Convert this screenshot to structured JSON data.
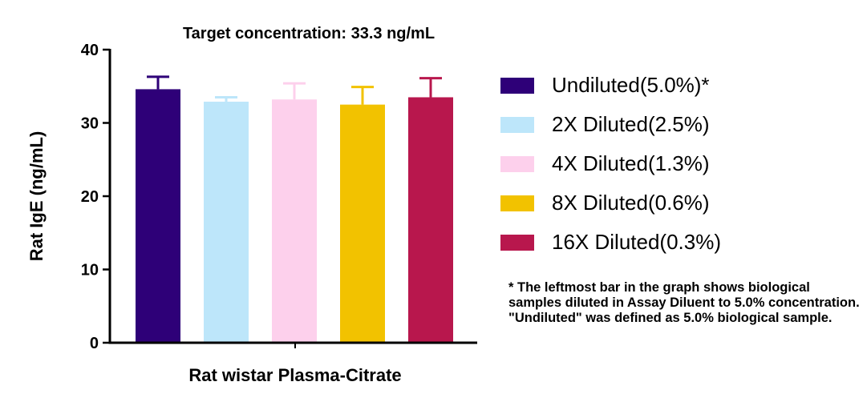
{
  "chart_data": {
    "type": "bar",
    "title": "Target concentration: 33.3 ng/mL",
    "xlabel": "Rat wistar Plasma-Citrate",
    "ylabel": "Rat IgE (ng/mL)",
    "ylim": [
      0,
      40
    ],
    "yticks": [
      "0",
      "10",
      "20",
      "30",
      "40"
    ],
    "grid": false,
    "legend_position": "right",
    "series": [
      {
        "name": "Undiluted(5.0%)*",
        "value": 34.6,
        "error": 1.7,
        "color": "#2e0078"
      },
      {
        "name": "2X Diluted(2.5%)",
        "value": 32.9,
        "error": 0.6,
        "color": "#bde6fa"
      },
      {
        "name": "4X Diluted(1.3%)",
        "value": 33.2,
        "error": 2.2,
        "color": "#fdd0ec"
      },
      {
        "name": "8X Diluted(0.6%)",
        "value": 32.5,
        "error": 2.4,
        "color": "#f2c200"
      },
      {
        "name": "16X Diluted(0.3%)",
        "value": 33.5,
        "error": 2.6,
        "color": "#b8174d"
      }
    ]
  },
  "footnote": "* The leftmost bar in the graph shows biological samples diluted in Assay Diluent to 5.0% concentration. \"Undiluted\" was defined as 5.0% biological sample."
}
